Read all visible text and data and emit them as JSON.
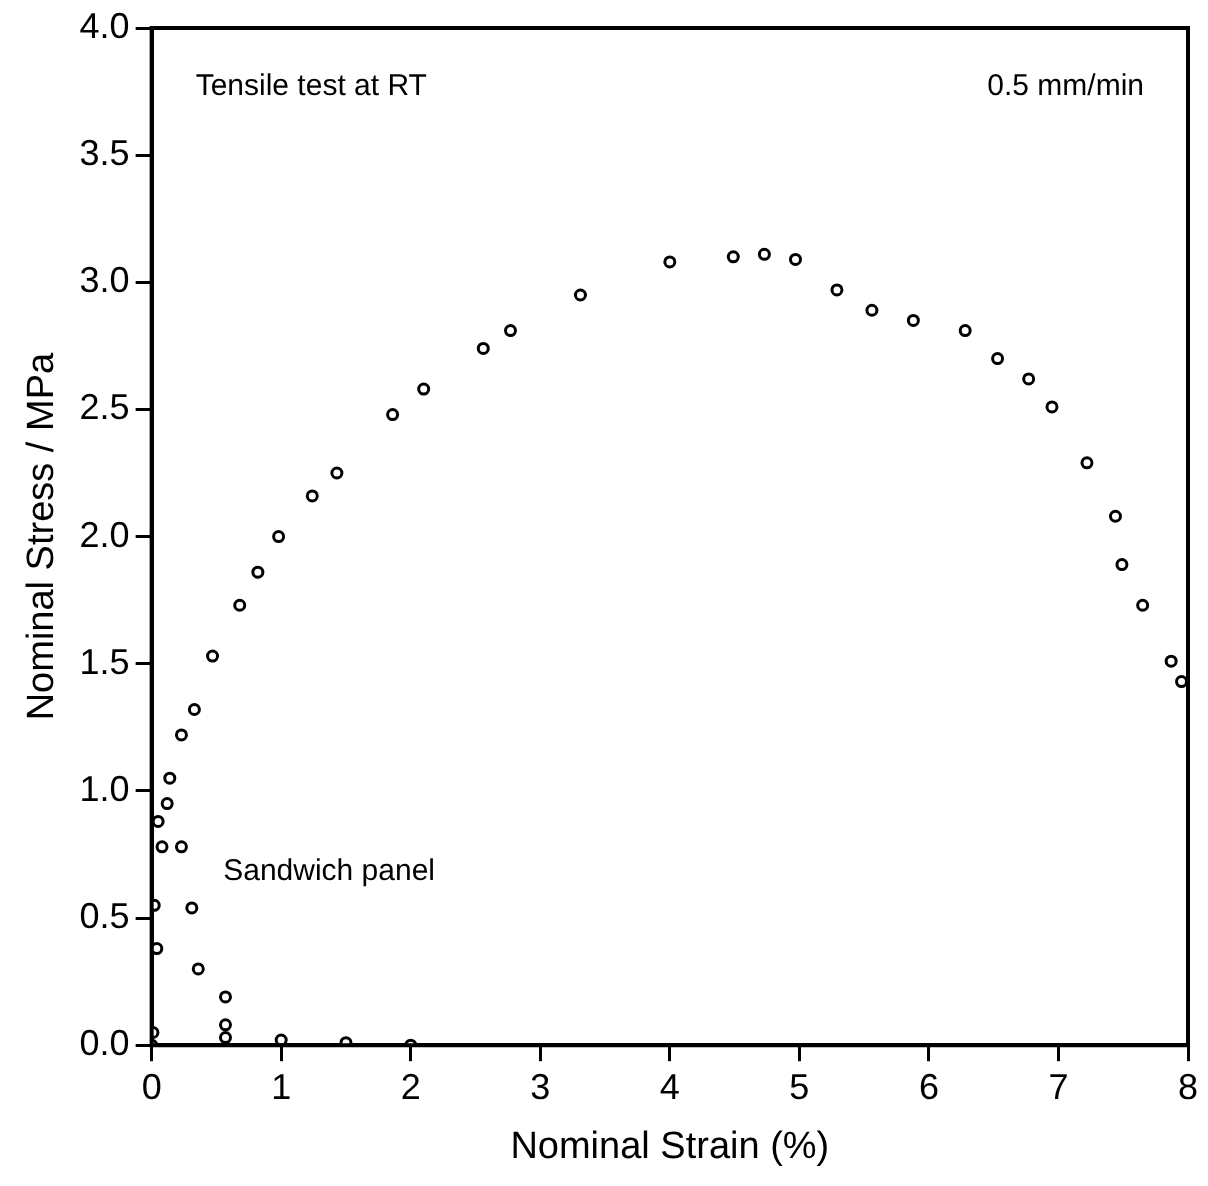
{
  "chart_data": {
    "type": "scatter",
    "xlabel": "Nominal Strain (%)",
    "ylabel": "Nominal Stress / MPa",
    "annotations": [
      "Tensile test at RT",
      "0.5 mm/min"
    ],
    "xlim": [
      0,
      8
    ],
    "xticks": [
      0,
      1,
      2,
      3,
      4,
      5,
      6,
      7,
      8
    ],
    "ylim": [
      0,
      4
    ],
    "yticks": [
      {
        "value": 0,
        "label": "0.0"
      },
      0.5,
      {
        "value": 1,
        "label": "1.0"
      },
      1.5,
      {
        "value": 2,
        "label": "2.0"
      },
      2.5,
      {
        "value": 3,
        "label": "3.0"
      },
      3.5,
      {
        "value": 4,
        "label": "4.0"
      }
    ],
    "grid": false,
    "legend": false,
    "marker": "circle",
    "series": [
      {
        "color": "#000000",
        "x": [
          0,
          0.04,
          0.08,
          0.14,
          0.23,
          0.33,
          0.47,
          0.68,
          0.82,
          0.98,
          1.24,
          1.43,
          1.86,
          2.1,
          2.56,
          2.77,
          3.31,
          4.0,
          4.49,
          4.73,
          4.97,
          5.29,
          5.56,
          5.88,
          6.28,
          6.53,
          6.77,
          6.95,
          7.22,
          7.44,
          7.49,
          7.65,
          7.87,
          7.95
        ],
        "values": [
          0,
          0.38,
          0.78,
          1.05,
          1.22,
          1.32,
          1.53,
          1.73,
          1.86,
          2.0,
          2.16,
          2.25,
          2.48,
          2.58,
          2.74,
          2.81,
          2.95,
          3.08,
          3.1,
          3.11,
          3.09,
          2.97,
          2.89,
          2.85,
          2.81,
          2.7,
          2.62,
          2.51,
          2.29,
          2.08,
          1.89,
          1.73,
          1.51,
          1.43
        ]
      },
      {
        "name": "Sandwich panel",
        "color": "#000000",
        "x": [
          0.01,
          0.02,
          0.05,
          0.12,
          0.23,
          0.31,
          0.36,
          0.57,
          0.57,
          0.57,
          1.0,
          1.5,
          2.0
        ],
        "values": [
          0.05,
          0.55,
          0.88,
          0.95,
          0.78,
          0.54,
          0.3,
          0.19,
          0.08,
          0.03,
          0.02,
          0.01,
          0
        ]
      }
    ]
  }
}
